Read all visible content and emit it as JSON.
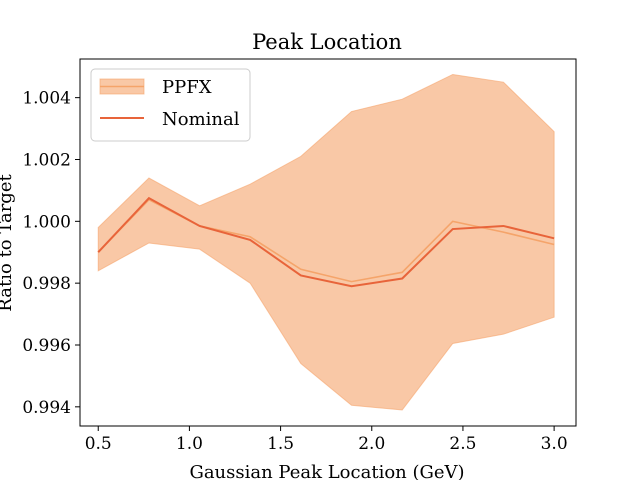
{
  "chart_data": {
    "type": "line",
    "title": "Peak Location",
    "xlabel": "Gaussian Peak Location (GeV)",
    "ylabel": "Ratio to Target",
    "xlim": [
      0.4,
      3.12
    ],
    "ylim": [
      0.99338,
      1.00525
    ],
    "xticks": [
      0.5,
      1.0,
      1.5,
      2.0,
      2.5,
      3.0
    ],
    "xtick_labels": [
      "0.5",
      "1.0",
      "1.5",
      "2.0",
      "2.5",
      "3.0"
    ],
    "yticks": [
      0.994,
      0.996,
      0.998,
      1.0,
      1.002,
      1.004
    ],
    "ytick_labels": [
      "0.994",
      "0.996",
      "0.998",
      "1.000",
      "1.002",
      "1.004"
    ],
    "x": [
      0.5,
      0.778,
      1.056,
      1.333,
      1.611,
      1.889,
      2.167,
      2.444,
      2.722,
      3.0
    ],
    "series": [
      {
        "name": "PPFX",
        "kind": "band",
        "color": "#f5a46a",
        "values": [
          0.999,
          1.0007,
          0.99985,
          0.9995,
          0.99845,
          0.99805,
          0.99835,
          1.0,
          0.99965,
          0.99925
        ],
        "lower": [
          0.9984,
          0.9993,
          0.9991,
          0.998,
          0.9954,
          0.99405,
          0.9939,
          0.99605,
          0.99635,
          0.9969
        ],
        "upper": [
          0.9998,
          1.0014,
          1.0005,
          1.0012,
          1.0021,
          1.00355,
          1.00395,
          1.00475,
          1.0045,
          1.0029
        ]
      },
      {
        "name": "Nominal",
        "kind": "line",
        "color": "#e8643a",
        "values": [
          0.999,
          1.00075,
          0.99985,
          0.9994,
          0.99825,
          0.9979,
          0.99815,
          0.99975,
          0.99985,
          0.99945
        ]
      }
    ],
    "grid": false,
    "legend_position": "top-left"
  }
}
